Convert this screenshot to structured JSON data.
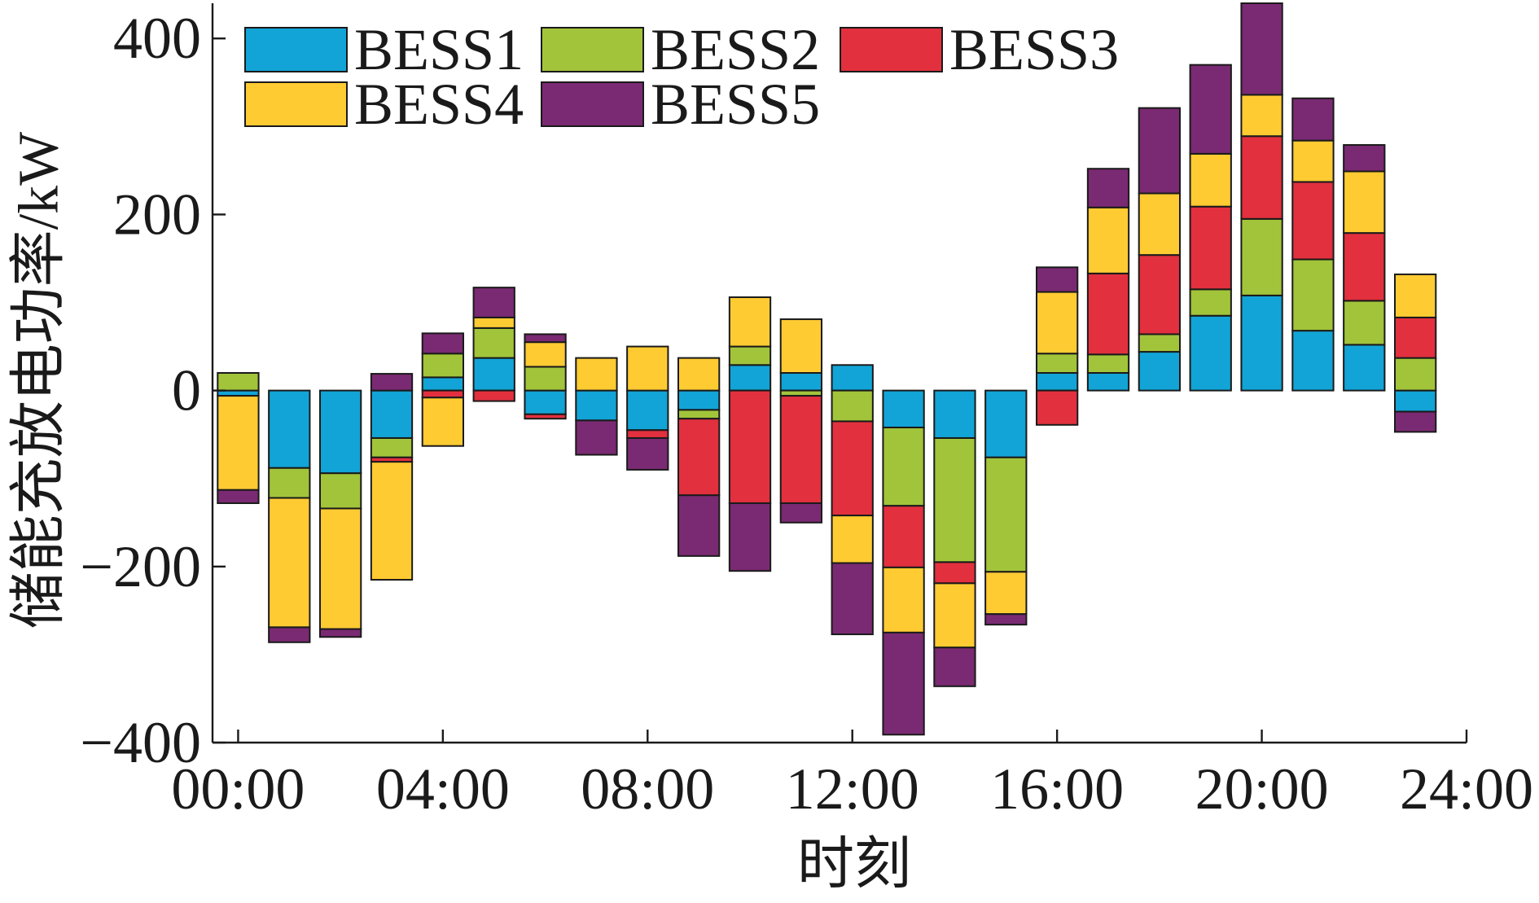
{
  "chart_data": {
    "type": "bar",
    "stacked": true,
    "xlabel": "时刻",
    "ylabel": "储能充放电功率/kW",
    "x": [
      "00:00",
      "01:00",
      "02:00",
      "03:00",
      "04:00",
      "05:00",
      "06:00",
      "07:00",
      "08:00",
      "09:00",
      "10:00",
      "11:00",
      "12:00",
      "13:00",
      "14:00",
      "15:00",
      "16:00",
      "17:00",
      "18:00",
      "19:00",
      "20:00",
      "21:00",
      "22:00",
      "23:00"
    ],
    "xlim": [
      "-00:30",
      "24:00"
    ],
    "x_ticks": [
      "00:00",
      "04:00",
      "08:00",
      "12:00",
      "16:00",
      "20:00",
      "24:00"
    ],
    "ylim": [
      -400,
      440
    ],
    "y_ticks": [
      -400,
      -200,
      0,
      200,
      400
    ],
    "y_tick_labels": [
      "−400",
      "−200",
      "0",
      "200",
      "400"
    ],
    "grid": false,
    "legend": "top-left",
    "series": [
      {
        "name": "BESS1",
        "color": "#12A4D6",
        "values": [
          -6,
          -88,
          -94,
          -54,
          15,
          37,
          -27,
          -34,
          -45,
          -22,
          29,
          20,
          29,
          -42,
          -54,
          -76,
          20,
          20,
          44,
          85,
          108,
          68,
          52,
          -24
        ]
      },
      {
        "name": "BESS2",
        "color": "#A2C43A",
        "values": [
          20,
          -34,
          -40,
          -22,
          27,
          34,
          27,
          0,
          0,
          -10,
          21,
          -6,
          -35,
          -89,
          -141,
          -130,
          22,
          21,
          20,
          30,
          87,
          81,
          50,
          37
        ]
      },
      {
        "name": "BESS3",
        "color": "#E2303E",
        "values": [
          0,
          0,
          0,
          -5,
          -8,
          -12,
          -5,
          0,
          -9,
          -87,
          -128,
          -122,
          -107,
          -70,
          -24,
          0,
          -39,
          92,
          90,
          94,
          94,
          88,
          77,
          46
        ]
      },
      {
        "name": "BESS4",
        "color": "#FFCB33",
        "values": [
          -107,
          -147,
          -137,
          -134,
          -55,
          12,
          28,
          37,
          50,
          37,
          56,
          61,
          -54,
          -74,
          -73,
          -48,
          70,
          75,
          70,
          60,
          47,
          47,
          70,
          49
        ]
      },
      {
        "name": "BESS5",
        "color": "#7A2A72",
        "values": [
          -15,
          -17,
          -9,
          19,
          23,
          34,
          9,
          -39,
          -36,
          -69,
          -77,
          -22,
          -81,
          -116,
          -44,
          -12,
          28,
          44,
          97,
          101,
          104,
          48,
          30,
          -23
        ]
      }
    ]
  }
}
